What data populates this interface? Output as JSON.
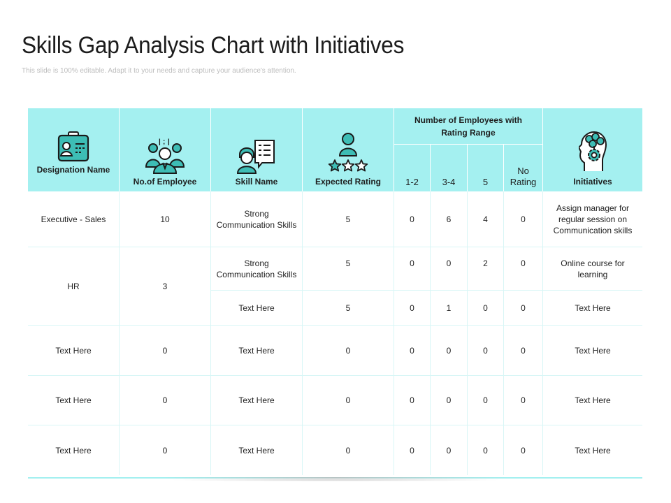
{
  "title": "Skills Gap Analysis Chart with Initiatives",
  "subtitle": "This slide is 100% editable. Adapt it to your needs and capture your audience's attention.",
  "colors": {
    "header_bg": "#a4f0f0",
    "icon_fill": "#3dbdb5",
    "icon_stroke": "#1a1a1a"
  },
  "headers": {
    "designation": "Designation Name",
    "employees": "No.of Employee",
    "skill": "Skill Name",
    "expected": "Expected Rating",
    "group": "Number of Employees with Rating Range",
    "range_1_2": "1-2",
    "range_3_4": "3-4",
    "range_5": "5",
    "range_none": "No Rating",
    "initiatives": "Initiatives"
  },
  "header_icons": [
    "id-badge-icon",
    "team-icon",
    "skill-chat-icon",
    "rating-stars-icon",
    "idea-head-icon"
  ],
  "rows": [
    {
      "designation": "Executive - Sales",
      "employees": "10",
      "skill": "Strong Communication Skills",
      "expected": "5",
      "r12": "0",
      "r34": "6",
      "r5": "4",
      "none": "0",
      "initiative": "Assign manager for regular session on Communication skills"
    },
    {
      "designation": "HR",
      "employees": "3",
      "skill": "Strong Communication Skills",
      "expected": "5",
      "r12": "0",
      "r34": "0",
      "r5": "2",
      "none": "0",
      "initiative": "Online course for learning"
    },
    {
      "designation": "",
      "employees": "",
      "skill": "Text Here",
      "expected": "5",
      "r12": "0",
      "r34": "1",
      "r5": "0",
      "none": "0",
      "initiative": "Text Here"
    },
    {
      "designation": "Text Here",
      "employees": "0",
      "skill": "Text Here",
      "expected": "0",
      "r12": "0",
      "r34": "0",
      "r5": "0",
      "none": "0",
      "initiative": "Text Here"
    },
    {
      "designation": "Text Here",
      "employees": "0",
      "skill": "Text Here",
      "expected": "0",
      "r12": "0",
      "r34": "0",
      "r5": "0",
      "none": "0",
      "initiative": "Text Here"
    },
    {
      "designation": "Text Here",
      "employees": "0",
      "skill": "Text Here",
      "expected": "0",
      "r12": "0",
      "r34": "0",
      "r5": "0",
      "none": "0",
      "initiative": "Text Here"
    }
  ]
}
